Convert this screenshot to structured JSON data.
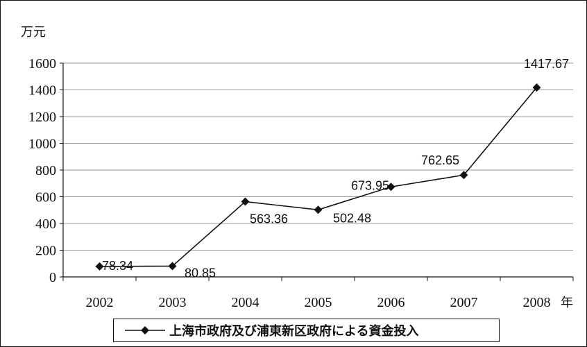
{
  "chart_data": {
    "type": "line",
    "ylabel_unit": "万元",
    "xlabel_unit": "年",
    "x": [
      "2002",
      "2003",
      "2004",
      "2005",
      "2006",
      "2007",
      "2008"
    ],
    "ylim": [
      0,
      1600
    ],
    "yticks": [
      0,
      200,
      400,
      600,
      800,
      1000,
      1200,
      1400,
      1600
    ],
    "grid": true,
    "legend_position": "bottom",
    "series": [
      {
        "name": "上海市政府及び浦東新区政府による資金投入",
        "values": [
          78.34,
          80.85,
          563.36,
          502.48,
          673.95,
          762.65,
          1417.67
        ],
        "data_labels": [
          "78.34",
          "80.85",
          "563.36",
          "502.48",
          "673.95",
          "762.65",
          "1417.67"
        ],
        "color": "#111111",
        "marker": "diamond"
      }
    ]
  }
}
